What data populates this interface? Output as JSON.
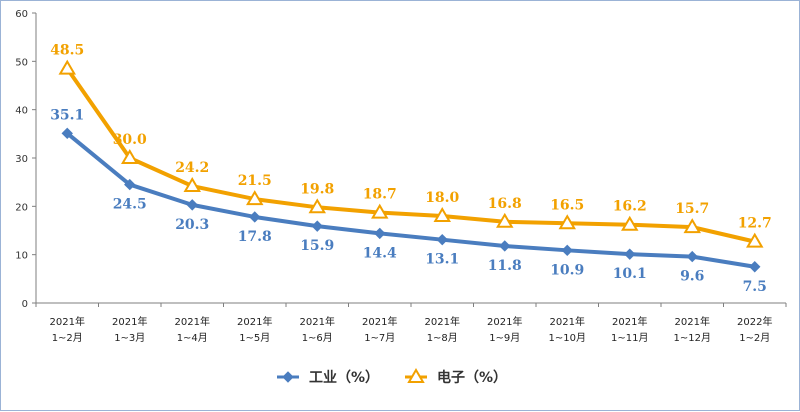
{
  "chart_data": {
    "type": "line",
    "categories": [
      [
        "2021年",
        "1~2月"
      ],
      [
        "2021年",
        "1~3月"
      ],
      [
        "2021年",
        "1~4月"
      ],
      [
        "2021年",
        "1~5月"
      ],
      [
        "2021年",
        "1~6月"
      ],
      [
        "2021年",
        "1~7月"
      ],
      [
        "2021年",
        "1~8月"
      ],
      [
        "2021年",
        "1~9月"
      ],
      [
        "2021年",
        "1~10月"
      ],
      [
        "2021年",
        "1~11月"
      ],
      [
        "2021年",
        "1~12月"
      ],
      [
        "2022年",
        "1~2月"
      ]
    ],
    "series": [
      {
        "name": "工业（%）",
        "color": "#4a7dbf",
        "marker": "diamond",
        "values": [
          35.1,
          24.5,
          20.3,
          17.8,
          15.9,
          14.4,
          13.1,
          11.8,
          10.9,
          10.1,
          9.6,
          7.5
        ]
      },
      {
        "name": "电子（%）",
        "color": "#f2a100",
        "marker": "triangle",
        "values": [
          48.5,
          30.0,
          24.2,
          21.5,
          19.8,
          18.7,
          18.0,
          16.8,
          16.5,
          16.2,
          15.7,
          12.7
        ]
      }
    ],
    "yticks": [
      0,
      10,
      20,
      30,
      40,
      50,
      60
    ],
    "ylim": [
      0,
      60
    ],
    "grid": false,
    "legend_position": "bottom-center"
  }
}
